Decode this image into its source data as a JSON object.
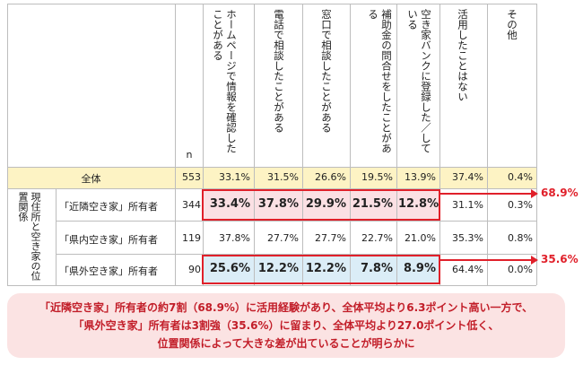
{
  "header": {
    "n_label": "n",
    "columns": [
      "ホームページで情報を確認したことがある",
      "電話で相談したことがある",
      "窓口で相談したことがある",
      "補助金の問合せをしたことがある",
      "空き家バンクに登録した／している",
      "活用したことはない",
      "その他"
    ]
  },
  "side_group_label": "現住所と空き家の位置関係",
  "rows": [
    {
      "label": "全体",
      "n": "553",
      "values": [
        "33.1%",
        "31.5%",
        "26.6%",
        "19.5%",
        "13.9%",
        "37.4%",
        "0.4%"
      ]
    },
    {
      "label": "「近隣空き家」所有者",
      "n": "344",
      "values": [
        "33.4%",
        "37.8%",
        "29.9%",
        "21.5%",
        "12.8%",
        "31.1%",
        "0.3%"
      ]
    },
    {
      "label": "「県内空き家」所有者",
      "n": "119",
      "values": [
        "37.8%",
        "27.7%",
        "27.7%",
        "22.7%",
        "21.0%",
        "35.3%",
        "0.8%"
      ]
    },
    {
      "label": "「県外空き家」所有者",
      "n": "90",
      "values": [
        "25.6%",
        "12.2%",
        "12.2%",
        "7.8%",
        "8.9%",
        "64.4%",
        "0.0%"
      ]
    }
  ],
  "callouts": {
    "near": "68.9%",
    "far": "35.6%"
  },
  "colors": {
    "total_row": "#fdf3c4",
    "near_highlight": "#fbe0e4",
    "far_highlight": "#dbedf7",
    "accent_red": "#e0202a",
    "summary_bg": "#fbe3e3"
  },
  "summary": {
    "line1": "「近隣空き家」所有者の約7割（68.9%）に活用経験があり、全体平均より6.3ポイント高い一方で、",
    "line2": "「県外空き家」所有者は3割強（35.6%）に留まり、全体平均より27.0ポイント低く、",
    "line3": "位置関係によって大きな差が出ていることが明らかに"
  }
}
